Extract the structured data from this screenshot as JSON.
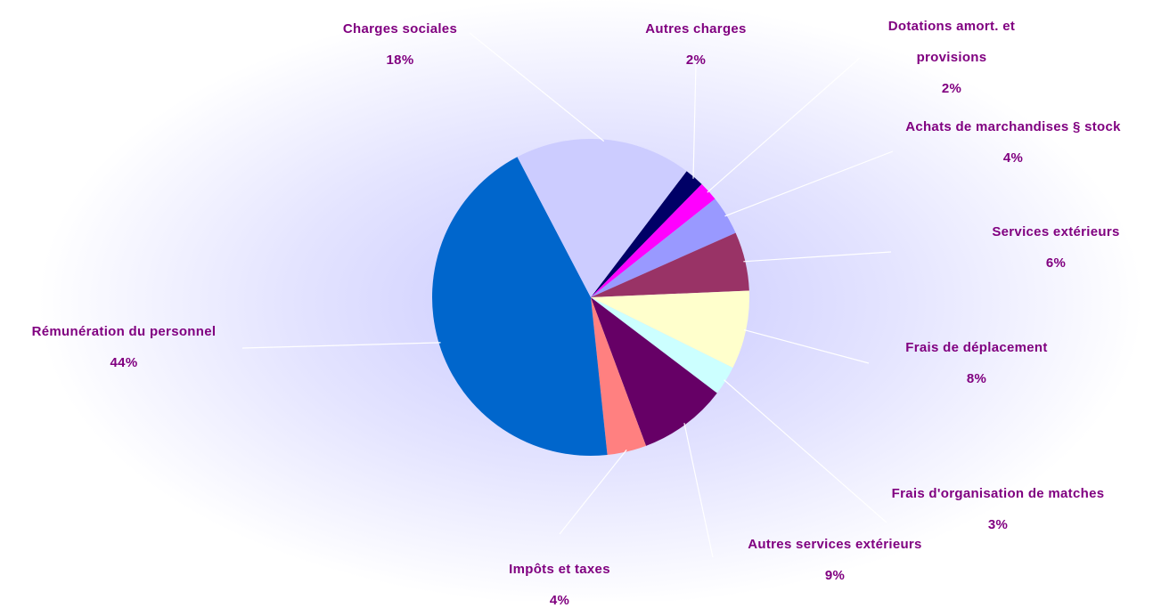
{
  "chart_data": {
    "type": "pie",
    "categories": [
      "Autres charges",
      "Dotations amort. et provisions",
      "Achats de marchandises § stock",
      "Services extérieurs",
      "Frais de déplacement",
      "Frais d'organisation de matches",
      "Autres services extérieurs",
      "Impôts et taxes",
      "Rémunération du personnel",
      "Charges sociales"
    ],
    "values": [
      2,
      2,
      4,
      6,
      8,
      3,
      9,
      4,
      44,
      18
    ],
    "value_labels": [
      "2%",
      "2%",
      "4%",
      "6%",
      "8%",
      "3%",
      "9%",
      "4%",
      "44%",
      "18%"
    ],
    "colors": [
      "#000066",
      "#ff00ff",
      "#9999ff",
      "#993366",
      "#ffffcc",
      "#ccffff",
      "#660066",
      "#ff8080",
      "#0066cc",
      "#ccccff"
    ]
  }
}
